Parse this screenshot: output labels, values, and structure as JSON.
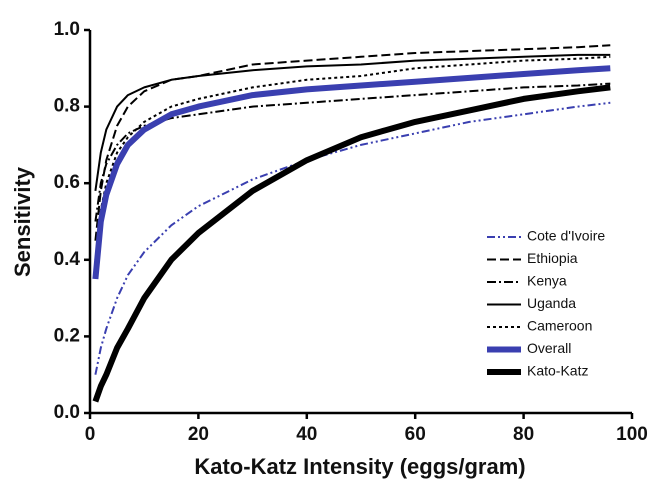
{
  "chart_data": {
    "type": "line",
    "x_label": "Kato-Katz Intensity (eggs/gram)",
    "y_label": "Sensitivity",
    "x": [
      1,
      2,
      3,
      5,
      7,
      10,
      15,
      20,
      30,
      40,
      50,
      60,
      70,
      80,
      90,
      96
    ],
    "series": [
      {
        "name": "Cote d'Ivoire",
        "color": "#3a3fb0",
        "dash": "8 3 2 3 2 3",
        "width": 2,
        "values": [
          0.1,
          0.17,
          0.22,
          0.3,
          0.36,
          0.42,
          0.49,
          0.54,
          0.61,
          0.66,
          0.7,
          0.73,
          0.76,
          0.78,
          0.8,
          0.81
        ]
      },
      {
        "name": "Ethiopia",
        "color": "#000000",
        "dash": "9 4",
        "width": 2,
        "values": [
          0.45,
          0.58,
          0.66,
          0.75,
          0.8,
          0.84,
          0.87,
          0.88,
          0.91,
          0.92,
          0.93,
          0.94,
          0.945,
          0.95,
          0.955,
          0.96
        ]
      },
      {
        "name": "Kenya",
        "color": "#000000",
        "dash": "9 3 2 3",
        "width": 2,
        "values": [
          0.5,
          0.6,
          0.65,
          0.7,
          0.73,
          0.75,
          0.77,
          0.78,
          0.8,
          0.81,
          0.82,
          0.83,
          0.84,
          0.85,
          0.855,
          0.86
        ]
      },
      {
        "name": "Uganda",
        "color": "#000000",
        "dash": "none",
        "width": 2,
        "values": [
          0.58,
          0.68,
          0.74,
          0.8,
          0.83,
          0.85,
          0.87,
          0.88,
          0.895,
          0.905,
          0.91,
          0.92,
          0.925,
          0.93,
          0.935,
          0.935
        ]
      },
      {
        "name": "Cameroon",
        "color": "#000000",
        "dash": "3 3",
        "width": 2,
        "values": [
          0.4,
          0.53,
          0.6,
          0.68,
          0.72,
          0.76,
          0.8,
          0.82,
          0.85,
          0.87,
          0.88,
          0.9,
          0.91,
          0.92,
          0.925,
          0.93
        ]
      },
      {
        "name": "Overall",
        "color": "#3a3fb0",
        "dash": "none",
        "width": 6,
        "values": [
          0.35,
          0.5,
          0.57,
          0.65,
          0.7,
          0.74,
          0.78,
          0.8,
          0.83,
          0.845,
          0.855,
          0.865,
          0.875,
          0.885,
          0.895,
          0.9
        ]
      },
      {
        "name": "Kato-Katz",
        "color": "#000000",
        "dash": "none",
        "width": 6,
        "values": [
          0.03,
          0.07,
          0.1,
          0.17,
          0.22,
          0.3,
          0.4,
          0.47,
          0.58,
          0.66,
          0.72,
          0.76,
          0.79,
          0.82,
          0.84,
          0.85
        ]
      }
    ],
    "xlim": [
      0,
      100
    ],
    "xticks": [
      0,
      20,
      40,
      60,
      80,
      100
    ],
    "ylim": [
      0,
      1
    ],
    "yticks": [
      {
        "value": 0,
        "label": "0.0"
      },
      0.2,
      0.4,
      0.6,
      0.8,
      {
        "value": 1,
        "label": "1.0"
      }
    ],
    "legend": "lower right"
  }
}
